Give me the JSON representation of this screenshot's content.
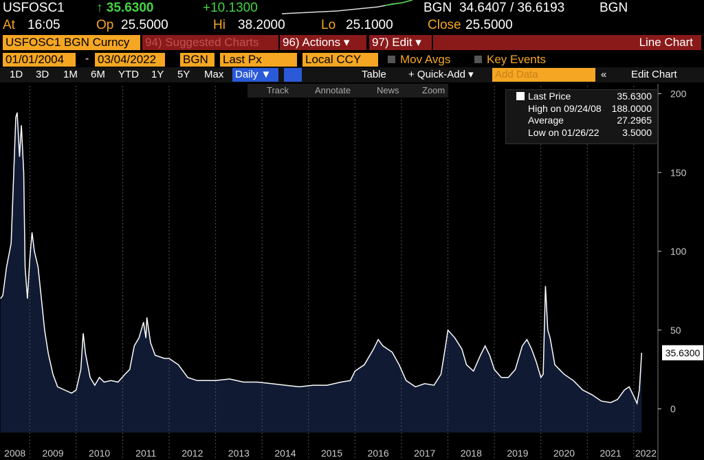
{
  "header": {
    "ticker": "USFOSC1",
    "last": "↑ 35.6300",
    "change": "+10.1300",
    "source": "BGN",
    "bid_ask": "34.6407 / 36.6193",
    "source2": "BGN",
    "stats": [
      {
        "label": "At",
        "value": "16:05"
      },
      {
        "label": "Op",
        "value": "25.5000"
      },
      {
        "label": "Hi",
        "value": "38.2000"
      },
      {
        "label": "Lo",
        "value": "25.1000"
      },
      {
        "label": "Close",
        "value": "25.5000"
      }
    ]
  },
  "menu": {
    "security": "USFOSC1 BGN Curncy",
    "suggested": "94) Suggested Charts",
    "actions": "96) Actions ▾",
    "edit": "97) Edit ▾",
    "view": "Line Chart"
  },
  "fields": {
    "start": "01/01/2004",
    "dash": "-",
    "end": "03/04/2022",
    "source": "BGN",
    "field": "Last Px",
    "currency": "Local CCY",
    "mov_avgs": "Mov Avgs",
    "key_events": "Key Events"
  },
  "toolbar": {
    "periods": [
      "1D",
      "3D",
      "1M",
      "6M",
      "YTD",
      "1Y",
      "5Y",
      "Max"
    ],
    "frequency": "Daily ▼",
    "table": "Table",
    "quick_add": "+ Quick-Add ▾",
    "add_data": "Add Data",
    "collapse": "«",
    "edit_chart": "Edit Chart"
  },
  "tools": [
    "Track",
    "Annotate",
    "News",
    "Zoom"
  ],
  "chart_data": {
    "type": "area",
    "color": "#ffffff",
    "fill": "#101a33",
    "legend": [
      {
        "label": "Last Price",
        "value": "35.6300"
      },
      {
        "label": "High on 09/24/08",
        "value": "188.0000"
      },
      {
        "label": "Average",
        "value": "27.2965"
      },
      {
        "label": "Low on 01/26/22",
        "value": "3.5000"
      }
    ],
    "last_value": 35.63,
    "last_label": "35.6300",
    "x": [
      2008.37,
      2008.42,
      2008.5,
      2008.6,
      2008.7,
      2008.73,
      2008.78,
      2008.82,
      2008.87,
      2008.9,
      2008.95,
      2009.0,
      2009.05,
      2009.1,
      2009.18,
      2009.25,
      2009.32,
      2009.4,
      2009.5,
      2009.6,
      2009.75,
      2009.9,
      2010.0,
      2010.1,
      2010.15,
      2010.2,
      2010.3,
      2010.4,
      2010.5,
      2010.6,
      2010.75,
      2010.9,
      2011.05,
      2011.15,
      2011.25,
      2011.35,
      2011.45,
      2011.5,
      2011.52,
      2011.6,
      2011.7,
      2011.9,
      2012.0,
      2012.2,
      2012.4,
      2012.6,
      2012.8,
      2013.0,
      2013.3,
      2013.6,
      2013.9,
      2014.2,
      2014.5,
      2014.8,
      2015.1,
      2015.4,
      2015.7,
      2015.9,
      2016.0,
      2016.2,
      2016.4,
      2016.5,
      2016.6,
      2016.8,
      2016.95,
      2017.1,
      2017.3,
      2017.5,
      2017.7,
      2017.85,
      2017.95,
      2018.0,
      2018.15,
      2018.3,
      2018.4,
      2018.55,
      2018.7,
      2018.8,
      2018.9,
      2019.0,
      2019.15,
      2019.3,
      2019.45,
      2019.6,
      2019.7,
      2019.8,
      2019.9,
      2020.0,
      2020.05,
      2020.1,
      2020.15,
      2020.2,
      2020.3,
      2020.4,
      2020.5,
      2020.7,
      2020.9,
      2021.1,
      2021.3,
      2021.5,
      2021.65,
      2021.8,
      2021.9,
      2022.0,
      2022.07,
      2022.12,
      2022.17
    ],
    "values": [
      70,
      72,
      90,
      105,
      185,
      188,
      160,
      180,
      150,
      90,
      70,
      95,
      112,
      100,
      90,
      70,
      50,
      35,
      22,
      14,
      12,
      10,
      12,
      25,
      48,
      35,
      20,
      15,
      20,
      17,
      18,
      17,
      22,
      25,
      40,
      45,
      55,
      45,
      58,
      42,
      34,
      32,
      32,
      28,
      20,
      18,
      18,
      18,
      19,
      17,
      17,
      16,
      15,
      14,
      15,
      15,
      17,
      18,
      24,
      28,
      38,
      44,
      40,
      36,
      28,
      18,
      14,
      16,
      15,
      22,
      40,
      50,
      45,
      38,
      28,
      24,
      34,
      40,
      34,
      25,
      20,
      20,
      25,
      40,
      44,
      38,
      30,
      20,
      22,
      78,
      50,
      45,
      28,
      25,
      22,
      18,
      12,
      9,
      5,
      4,
      6,
      12,
      14,
      8,
      3.5,
      12,
      35.63
    ],
    "xlim": [
      2008.36,
      2022.52
    ],
    "ylim": [
      -15,
      205
    ],
    "xticks": [
      2008,
      2009,
      2010,
      2011,
      2012,
      2013,
      2014,
      2015,
      2016,
      2017,
      2018,
      2019,
      2020,
      2021,
      2022
    ],
    "yticks": [
      0,
      50,
      100,
      150,
      200
    ],
    "grid": true
  }
}
